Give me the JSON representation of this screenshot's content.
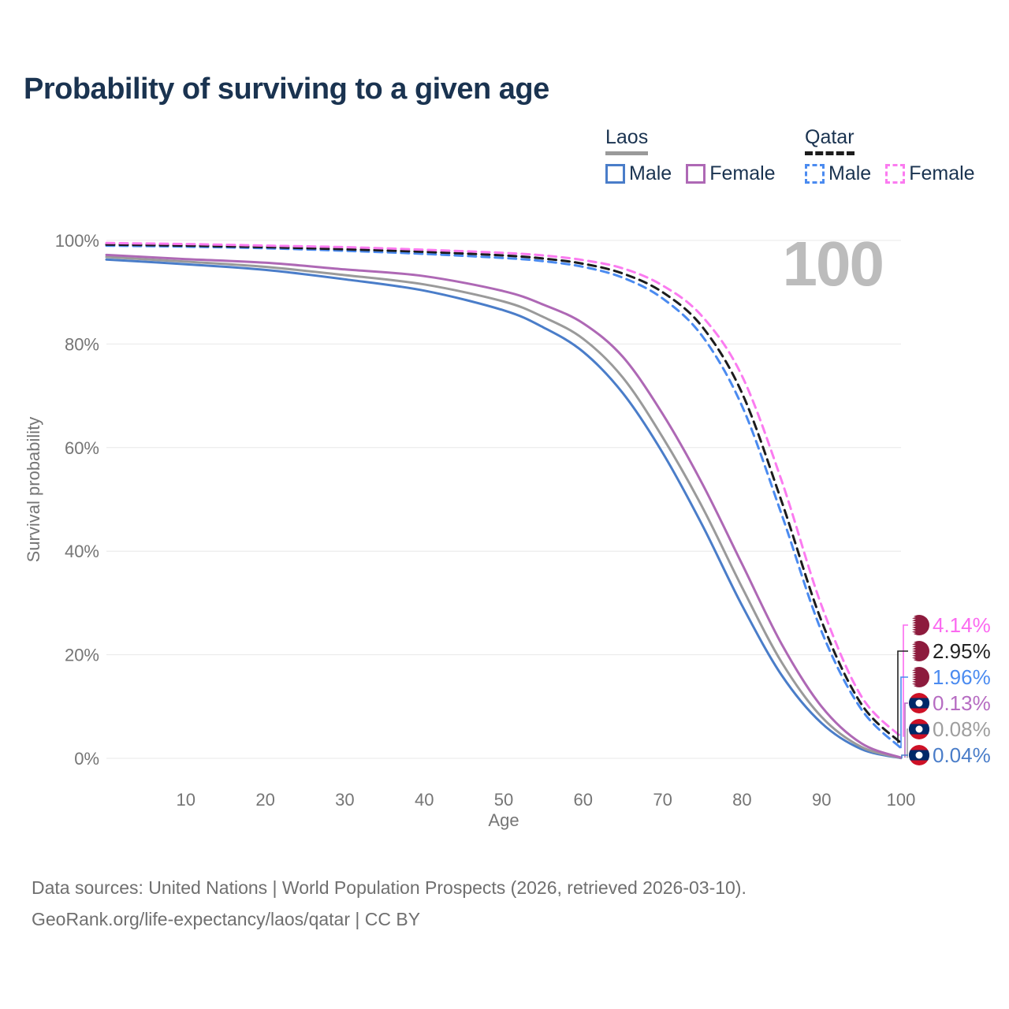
{
  "title": "Probability of surviving to a given age",
  "watermark": "100",
  "legend": {
    "groups": [
      {
        "label": "Laos",
        "line_style": "solid",
        "underline_color": "#9a9a9a",
        "items": [
          {
            "label": "Male",
            "color": "#4a7dc9",
            "dashed": false
          },
          {
            "label": "Female",
            "color": "#ae68b5",
            "dashed": false
          }
        ]
      },
      {
        "label": "Qatar",
        "line_style": "dashed",
        "underline_color": "#1c1c1c",
        "items": [
          {
            "label": "Male",
            "color": "#4b8bf0",
            "dashed": true
          },
          {
            "label": "Female",
            "color": "#fb7bf0",
            "dashed": true
          }
        ]
      }
    ]
  },
  "chart_data": {
    "type": "line",
    "title": "Probability of surviving to a given age",
    "xlabel": "Age",
    "ylabel": "Survival probability",
    "xlim": [
      0,
      100
    ],
    "ylim": [
      0,
      100
    ],
    "grid": "horizontal",
    "x_ticks": [
      "10",
      "20",
      "30",
      "40",
      "50",
      "60",
      "70",
      "80",
      "90",
      "100"
    ],
    "x_tick_values": [
      10,
      20,
      30,
      40,
      50,
      60,
      70,
      80,
      90,
      100
    ],
    "y_ticks": [
      "0%",
      "20%",
      "40%",
      "60%",
      "80%",
      "100%"
    ],
    "y_tick_values": [
      0,
      20,
      40,
      60,
      80,
      100
    ],
    "ages": [
      0,
      10,
      20,
      30,
      40,
      50,
      55,
      60,
      65,
      70,
      75,
      80,
      85,
      90,
      95,
      100
    ],
    "series": [
      {
        "name": "Laos Male",
        "color": "#4a7dc9",
        "dashed": false,
        "values": [
          96.3,
          95.4,
          94.3,
          92.5,
          90.3,
          86.5,
          83.2,
          78.5,
          70.5,
          59,
          45,
          29.5,
          16,
          6.8,
          1.8,
          0.04
        ]
      },
      {
        "name": "Laos Both sexes",
        "color": "#9a9a9a",
        "dashed": false,
        "values": [
          96.8,
          95.9,
          94.9,
          93.3,
          91.5,
          88.2,
          85.2,
          81,
          73.5,
          62,
          48.5,
          33,
          18.5,
          8,
          2.2,
          0.08
        ]
      },
      {
        "name": "Laos Female",
        "color": "#ae68b5",
        "dashed": false,
        "values": [
          97.2,
          96.4,
          95.7,
          94.4,
          93.1,
          90.2,
          87.6,
          84,
          77.5,
          66.5,
          53,
          37.5,
          22,
          10,
          2.9,
          0.13
        ]
      },
      {
        "name": "Qatar Male",
        "color": "#4b8bf0",
        "dashed": true,
        "values": [
          99.0,
          98.8,
          98.5,
          98.0,
          97.4,
          96.6,
          96.0,
          94.9,
          92.8,
          88.8,
          81.5,
          68,
          47,
          24.5,
          9.5,
          1.96
        ]
      },
      {
        "name": "Qatar Both sexes",
        "color": "#1c1c1c",
        "dashed": true,
        "values": [
          99.2,
          99.0,
          98.7,
          98.3,
          97.8,
          97.1,
          96.5,
          95.5,
          93.6,
          90,
          83.3,
          70.5,
          49.5,
          26.5,
          10.5,
          2.95
        ]
      },
      {
        "name": "Qatar Female",
        "color": "#fb7bf0",
        "dashed": true,
        "values": [
          99.5,
          99.3,
          99.0,
          98.7,
          98.2,
          97.6,
          97.1,
          96.2,
          94.6,
          91.3,
          85.3,
          73.8,
          53.5,
          29.5,
          12,
          4.14
        ]
      }
    ],
    "end_labels": [
      {
        "text": "4.14%",
        "value": 4.14,
        "color": "#fb6af0",
        "flag": "qatar",
        "series": "Qatar Female"
      },
      {
        "text": "2.95%",
        "value": 2.95,
        "color": "#222222",
        "flag": "qatar",
        "series": "Qatar Both sexes"
      },
      {
        "text": "1.96%",
        "value": 1.96,
        "color": "#4b8bf0",
        "flag": "qatar",
        "series": "Qatar Male"
      },
      {
        "text": "0.13%",
        "value": 0.13,
        "color": "#b66cc2",
        "flag": "laos",
        "series": "Laos Female"
      },
      {
        "text": "0.08%",
        "value": 0.08,
        "color": "#9e9e9e",
        "flag": "laos",
        "series": "Laos Both sexes"
      },
      {
        "text": "0.04%",
        "value": 0.04,
        "color": "#4a7dc9",
        "flag": "laos",
        "series": "Laos Male"
      }
    ],
    "flag_colors": {
      "qatar_maroon": "#8d1b3d",
      "laos_red": "#ce1126",
      "laos_blue": "#002868"
    }
  },
  "footer": {
    "line1": "Data sources: United Nations | World Population Prospects (2026, retrieved 2026-03-10).",
    "line2": "GeoRank.org/life-expectancy/laos/qatar | CC BY"
  }
}
